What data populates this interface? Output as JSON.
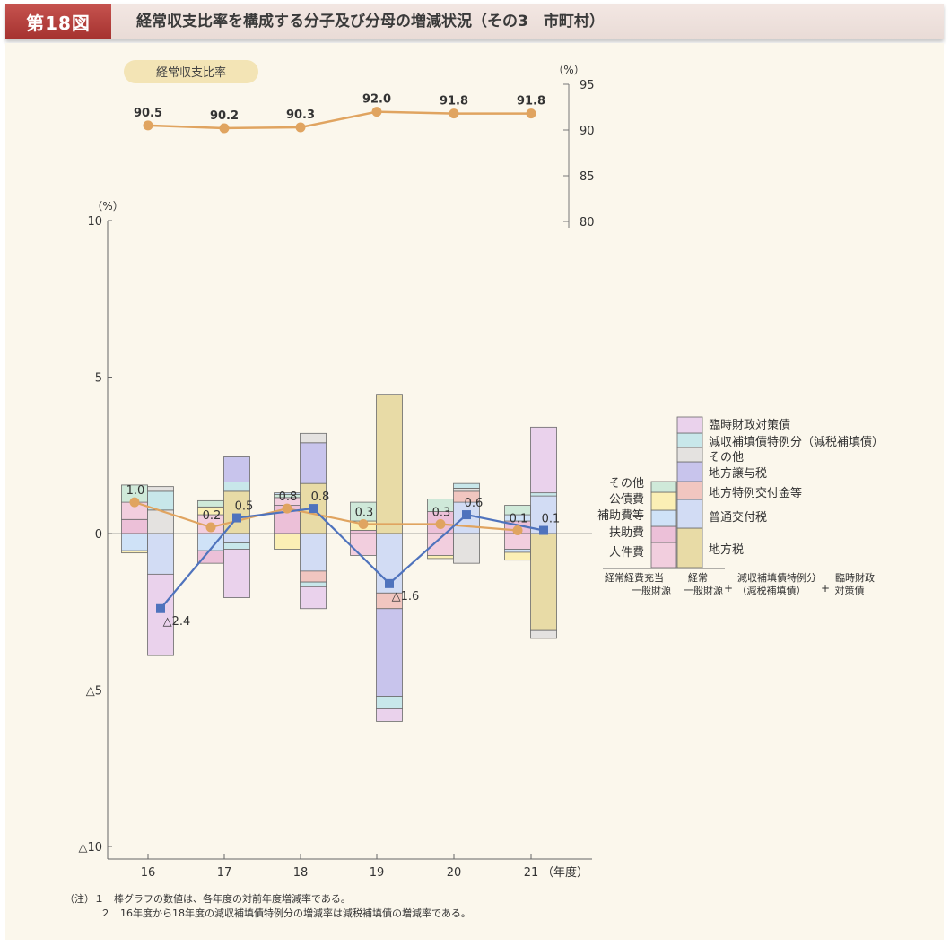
{
  "header": {
    "figure_label": "第18図",
    "title": "経常収支比率を構成する分子及び分母の増減状況（その3　市町村）"
  },
  "colors": {
    "ratio_line": "#e0a460",
    "blue_line": "#4f73bd",
    "jinken": "#f2cede",
    "fujo": "#ecc0d8",
    "hojo": "#cfe2f7",
    "kosai": "#fbefb5",
    "sonota_num": "#cfe9d9",
    "chihozei": "#e8dba6",
    "futsu": "#d2dcf4",
    "tokurei": "#f1c6c0",
    "joyo": "#c8c4ec",
    "sonota_den": "#e4e2e0",
    "genshu": "#c8e7ea",
    "rinji": "#ead2ec"
  },
  "chart_data": [
    {
      "type": "line",
      "label": "経常収支比率",
      "unit": "（%）",
      "x": [
        "16",
        "17",
        "18",
        "19",
        "20",
        "21"
      ],
      "values": [
        90.5,
        90.2,
        90.3,
        92.0,
        91.8,
        91.8
      ],
      "value_labels": [
        "90.5",
        "90.2",
        "90.3",
        "92.0",
        "91.8",
        "91.8"
      ],
      "ylim": [
        80,
        95
      ],
      "yticks": [
        "95",
        "90",
        "85",
        "80"
      ]
    },
    {
      "type": "bar",
      "unit": "（%）",
      "xunit": "（年度）",
      "x": [
        "16",
        "17",
        "18",
        "19",
        "20",
        "21"
      ],
      "ylim": [
        -10,
        10
      ],
      "yticks": [
        "10",
        "5",
        "0",
        "△5",
        "△10"
      ],
      "numerator_change": [
        1.0,
        0.2,
        0.8,
        0.3,
        0.3,
        0.1
      ],
      "numerator_labels": [
        "1.0",
        "0.2",
        "0.8",
        "0.3",
        "0.3",
        "0.1"
      ],
      "denominator_change": [
        -2.4,
        0.5,
        0.8,
        -1.6,
        0.6,
        0.1
      ],
      "denominator_labels": [
        "△2.4",
        "0.5",
        "0.8",
        "△1.6",
        "0.6",
        "0.1"
      ],
      "numerator_legend": [
        "その他",
        "公債費",
        "補助費等",
        "扶助費",
        "人件費"
      ],
      "denominator_legend": [
        "臨時財政対策債",
        "減収補填債特例分（減税補填債）",
        "その他",
        "地方譲与税",
        "地方特例交付金等",
        "普通交付税",
        "地方税"
      ],
      "numerator_caption": [
        "経常経費充当",
        "一般財源"
      ],
      "denominator_caption_parts": [
        [
          "経常",
          "一般財源"
        ],
        [
          "減収補填債特例分",
          "（減税補填債）"
        ],
        [
          "臨時財政",
          "対策債"
        ]
      ],
      "plus_sign": "+",
      "numerator_bars": [
        [
          {
            "c": "fujo",
            "from": 0,
            "to": 0.45
          },
          {
            "c": "jinken",
            "from": 0.45,
            "to": 1.0
          },
          {
            "c": "sonota_num",
            "from": 1.0,
            "to": 1.55
          },
          {
            "c": "hojo",
            "from": 0,
            "to": -0.55
          },
          {
            "c": "kosai",
            "from": -0.55,
            "to": -0.62
          }
        ],
        [
          {
            "c": "jinken",
            "from": 0,
            "to": 0.6
          },
          {
            "c": "kosai",
            "from": 0.6,
            "to": 0.85
          },
          {
            "c": "sonota_num",
            "from": 0.85,
            "to": 1.05
          },
          {
            "c": "hojo",
            "from": 0,
            "to": -0.55
          },
          {
            "c": "fujo",
            "from": -0.55,
            "to": -0.95
          }
        ],
        [
          {
            "c": "fujo",
            "from": 0,
            "to": 0.9
          },
          {
            "c": "jinken",
            "from": 0.9,
            "to": 1.15
          },
          {
            "c": "sonota_num",
            "from": 1.15,
            "to": 1.25
          },
          {
            "c": "hojo",
            "from": 1.25,
            "to": 1.3
          },
          {
            "c": "kosai",
            "from": 0,
            "to": -0.5
          }
        ],
        [
          {
            "c": "fujo",
            "from": 0,
            "to": 0.1
          },
          {
            "c": "kosai",
            "from": 0.1,
            "to": 0.4
          },
          {
            "c": "sonota_num",
            "from": 0.4,
            "to": 1.0
          },
          {
            "c": "jinken",
            "from": 0,
            "to": -0.7
          }
        ],
        [
          {
            "c": "fujo",
            "from": 0,
            "to": 0.7
          },
          {
            "c": "sonota_num",
            "from": 0.7,
            "to": 1.1
          },
          {
            "c": "jinken",
            "from": 0,
            "to": -0.7
          },
          {
            "c": "kosai",
            "from": -0.7,
            "to": -0.8
          }
        ],
        [
          {
            "c": "fujo",
            "from": 0,
            "to": 0.4
          },
          {
            "c": "hojo",
            "from": 0.4,
            "to": 0.6
          },
          {
            "c": "sonota_num",
            "from": 0.6,
            "to": 0.9
          },
          {
            "c": "jinken",
            "from": 0,
            "to": -0.5
          },
          {
            "c": "hojo",
            "from": -0.5,
            "to": -0.6
          },
          {
            "c": "kosai",
            "from": -0.6,
            "to": -0.85
          }
        ]
      ],
      "denominator_bars": [
        [
          {
            "c": "sonota_den",
            "from": 0,
            "to": 0.75
          },
          {
            "c": "genshu",
            "from": 0.75,
            "to": 1.35
          },
          {
            "c": "sonota_den",
            "from": 1.35,
            "to": 1.5
          },
          {
            "c": "futsu",
            "from": 0,
            "to": -1.3
          },
          {
            "c": "rinji",
            "from": -1.3,
            "to": -3.9
          }
        ],
        [
          {
            "c": "chihozei",
            "from": 0,
            "to": 1.35
          },
          {
            "c": "genshu",
            "from": 1.35,
            "to": 1.65
          },
          {
            "c": "joyo",
            "from": 1.65,
            "to": 2.45
          },
          {
            "c": "futsu",
            "from": 0,
            "to": -0.3
          },
          {
            "c": "genshu",
            "from": -0.3,
            "to": -0.5
          },
          {
            "c": "rinji",
            "from": -0.5,
            "to": -2.05
          }
        ],
        [
          {
            "c": "chihozei",
            "from": 0,
            "to": 1.6
          },
          {
            "c": "joyo",
            "from": 1.6,
            "to": 2.9
          },
          {
            "c": "sonota_den",
            "from": 2.9,
            "to": 3.2
          },
          {
            "c": "futsu",
            "from": 0,
            "to": -1.2
          },
          {
            "c": "tokurei",
            "from": -1.2,
            "to": -1.55
          },
          {
            "c": "genshu",
            "from": -1.55,
            "to": -1.7
          },
          {
            "c": "rinji",
            "from": -1.7,
            "to": -2.4
          }
        ],
        [
          {
            "c": "chihozei",
            "from": 0,
            "to": 4.45
          },
          {
            "c": "futsu",
            "from": 0,
            "to": -1.9
          },
          {
            "c": "tokurei",
            "from": -1.9,
            "to": -2.4
          },
          {
            "c": "joyo",
            "from": -2.4,
            "to": -5.2
          },
          {
            "c": "genshu",
            "from": -5.2,
            "to": -5.6
          },
          {
            "c": "rinji",
            "from": -5.6,
            "to": -6.0
          }
        ],
        [
          {
            "c": "futsu",
            "from": 0,
            "to": 1.0
          },
          {
            "c": "tokurei",
            "from": 1.0,
            "to": 1.35
          },
          {
            "c": "sonota_den",
            "from": 1.35,
            "to": 1.45
          },
          {
            "c": "genshu",
            "from": 1.45,
            "to": 1.6
          },
          {
            "c": "sonota_den",
            "from": 0,
            "to": -0.95
          }
        ],
        [
          {
            "c": "futsu",
            "from": 0,
            "to": 1.2
          },
          {
            "c": "genshu",
            "from": 1.2,
            "to": 1.3
          },
          {
            "c": "rinji",
            "from": 1.3,
            "to": 3.4
          },
          {
            "c": "chihozei",
            "from": 0,
            "to": -3.1
          },
          {
            "c": "sonota_den",
            "from": -3.1,
            "to": -3.35
          }
        ]
      ]
    }
  ],
  "notes": [
    "（注）１　棒グラフの数値は、各年度の対前年度増減率である。",
    "２　16年度から18年度の減収補填債特例分の増減率は減税補填債の増減率である。"
  ]
}
